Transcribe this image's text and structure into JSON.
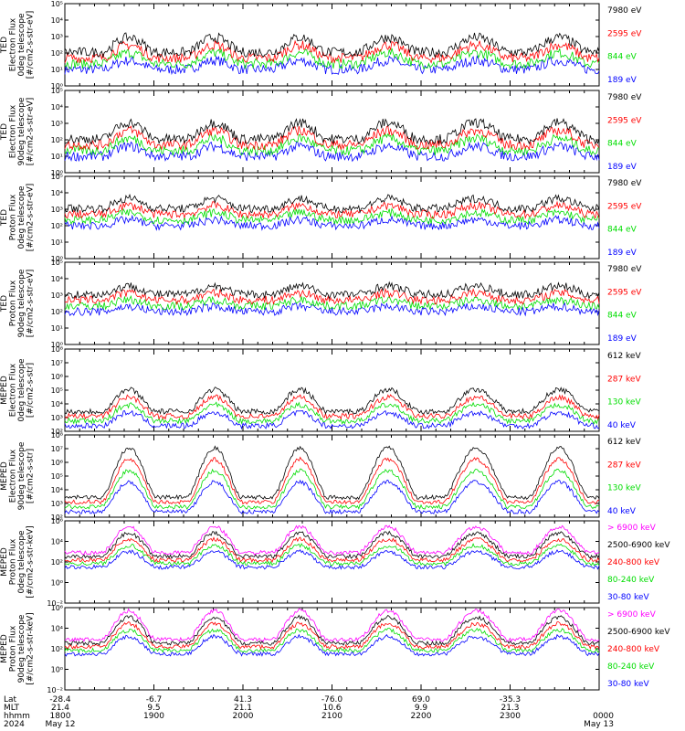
{
  "chart_data": [
    {
      "type": "line",
      "ylabel": [
        "TED",
        "Electron Flux",
        "0deg telescope",
        "[#/cm2-s-str-eV]"
      ],
      "y_scale": "log",
      "ylim_exp": [
        0,
        5
      ],
      "y_ticks": [
        "10⁰",
        "10¹",
        "10²",
        "10³",
        "10⁴",
        "10⁵"
      ],
      "series": [
        {
          "name": "7980 eV",
          "color": "#000000"
        },
        {
          "name": "2595 eV",
          "color": "#ff0000"
        },
        {
          "name": "844 eV",
          "color": "#00dd00"
        },
        {
          "name": "189 eV",
          "color": "#0000ff"
        }
      ],
      "profile": {
        "base": 1.0,
        "amp": 0.9,
        "noise": 0.3
      }
    },
    {
      "type": "line",
      "ylabel": [
        "TED",
        "Electron Flux",
        "90deg telescope",
        "[#/cm2-s-str-eV]"
      ],
      "y_scale": "log",
      "ylim_exp": [
        0,
        5
      ],
      "y_ticks": [
        "10⁰",
        "10¹",
        "10²",
        "10³",
        "10⁴",
        "10⁵"
      ],
      "series": [
        {
          "name": "7980 eV",
          "color": "#000000"
        },
        {
          "name": "2595 eV",
          "color": "#ff0000"
        },
        {
          "name": "844 eV",
          "color": "#00dd00"
        },
        {
          "name": "189 eV",
          "color": "#0000ff"
        }
      ],
      "profile": {
        "base": 1.0,
        "amp": 1.0,
        "noise": 0.3
      }
    },
    {
      "type": "line",
      "ylabel": [
        "TED",
        "Proton Flux",
        "0deg telescope",
        "[#/cm2-s-str-eV]"
      ],
      "y_scale": "log",
      "ylim_exp": [
        0,
        5
      ],
      "y_ticks": [
        "10⁰",
        "10¹",
        "10²",
        "10³",
        "10⁴",
        "10⁵"
      ],
      "series": [
        {
          "name": "7980 eV",
          "color": "#000000"
        },
        {
          "name": "2595 eV",
          "color": "#ff0000"
        },
        {
          "name": "844 eV",
          "color": "#00dd00"
        },
        {
          "name": "189 eV",
          "color": "#0000ff"
        }
      ],
      "profile": {
        "base": 2.0,
        "amp": 0.6,
        "noise": 0.25
      }
    },
    {
      "type": "line",
      "ylabel": [
        "TED",
        "Proton Flux",
        "90deg telescope",
        "[#/cm2-s-str-eV]"
      ],
      "y_scale": "log",
      "ylim_exp": [
        0,
        5
      ],
      "y_ticks": [
        "10⁰",
        "10¹",
        "10²",
        "10³",
        "10⁴",
        "10⁵"
      ],
      "series": [
        {
          "name": "7980 eV",
          "color": "#000000"
        },
        {
          "name": "2595 eV",
          "color": "#ff0000"
        },
        {
          "name": "844 eV",
          "color": "#00dd00"
        },
        {
          "name": "189 eV",
          "color": "#0000ff"
        }
      ],
      "profile": {
        "base": 2.0,
        "amp": 0.5,
        "noise": 0.25
      }
    },
    {
      "type": "line",
      "ylabel": [
        "MEPED",
        "Electron Flux",
        "0deg telescope",
        "[#/cm2-s-str]"
      ],
      "y_scale": "log",
      "ylim_exp": [
        2,
        8
      ],
      "y_ticks": [
        "10²",
        "10³",
        "10⁴",
        "10⁵",
        "10⁶",
        "10⁷",
        "10⁸"
      ],
      "series": [
        {
          "name": "612 keV",
          "color": "#000000"
        },
        {
          "name": "287 keV",
          "color": "#ff0000"
        },
        {
          "name": "130 keV",
          "color": "#00dd00"
        },
        {
          "name": "40 keV",
          "color": "#0000ff"
        }
      ],
      "profile": {
        "base": 2.4,
        "amp": 1.6,
        "noise": 0.2
      }
    },
    {
      "type": "line",
      "ylabel": [
        "MEPED",
        "Electron Flux",
        "90deg telescope",
        "[#/cm2-s-str]"
      ],
      "y_scale": "log",
      "ylim_exp": [
        2,
        8
      ],
      "y_ticks": [
        "10²",
        "10³",
        "10⁴",
        "10⁵",
        "10⁶",
        "10⁷",
        "10⁸"
      ],
      "series": [
        {
          "name": "612 keV",
          "color": "#000000"
        },
        {
          "name": "287 keV",
          "color": "#ff0000"
        },
        {
          "name": "130 keV",
          "color": "#00dd00"
        },
        {
          "name": "40 keV",
          "color": "#0000ff"
        }
      ],
      "profile": {
        "base": 2.4,
        "amp": 3.6,
        "noise": 0.15
      }
    },
    {
      "type": "line",
      "ylabel": [
        "MEPED",
        "Proton Flux",
        "0deg telescope",
        "[#/cm2-s-str-keV]"
      ],
      "y_scale": "log",
      "ylim_exp": [
        -2,
        6
      ],
      "y_ticks": [
        "10⁻²",
        "10⁰",
        "10²",
        "10⁴",
        "10⁶"
      ],
      "series": [
        {
          "name": "> 6900 keV",
          "color": "#ff00ff"
        },
        {
          "name": "2500-6900 keV",
          "color": "#000000"
        },
        {
          "name": "240-800 keV",
          "color": "#ff0000"
        },
        {
          "name": "80-240 keV",
          "color": "#00dd00"
        },
        {
          "name": "30-80 keV",
          "color": "#0000ff"
        }
      ],
      "profile": {
        "base": 1.5,
        "amp": 2.5,
        "noise": 0.2
      }
    },
    {
      "type": "line",
      "ylabel": [
        "MEPED",
        "Proton Flux",
        "90deg telescope",
        "[#/cm2-s-str-keV]"
      ],
      "y_scale": "log",
      "ylim_exp": [
        -2,
        6
      ],
      "y_ticks": [
        "10⁻²",
        "10⁰",
        "10²",
        "10⁴",
        "10⁶"
      ],
      "series": [
        {
          "name": "> 6900 keV",
          "color": "#ff00ff"
        },
        {
          "name": "2500-6900 keV",
          "color": "#000000"
        },
        {
          "name": "240-800 keV",
          "color": "#ff0000"
        },
        {
          "name": "80-240 keV",
          "color": "#00dd00"
        },
        {
          "name": "30-80 keV",
          "color": "#0000ff"
        }
      ],
      "profile": {
        "base": 1.5,
        "amp": 2.8,
        "noise": 0.2
      }
    }
  ],
  "x_axis": {
    "row_labels": [
      "Lat",
      "MLT",
      "hhmm",
      "2024"
    ],
    "ticks": [
      {
        "lat": "-28.4",
        "mlt": "21.4",
        "hhmm": "1800",
        "date": "May 12"
      },
      {
        "lat": "-6.7",
        "mlt": "9.5",
        "hhmm": "1900",
        "date": ""
      },
      {
        "lat": "41.3",
        "mlt": "21.1",
        "hhmm": "2000",
        "date": ""
      },
      {
        "lat": "-76.0",
        "mlt": "10.6",
        "hhmm": "2100",
        "date": ""
      },
      {
        "lat": "69.0",
        "mlt": "9.9",
        "hhmm": "2200",
        "date": ""
      },
      {
        "lat": "-35.3",
        "mlt": "21.3",
        "hhmm": "2300",
        "date": ""
      },
      {
        "lat": "",
        "mlt": "",
        "hhmm": "0000",
        "date": "May 13"
      }
    ]
  }
}
